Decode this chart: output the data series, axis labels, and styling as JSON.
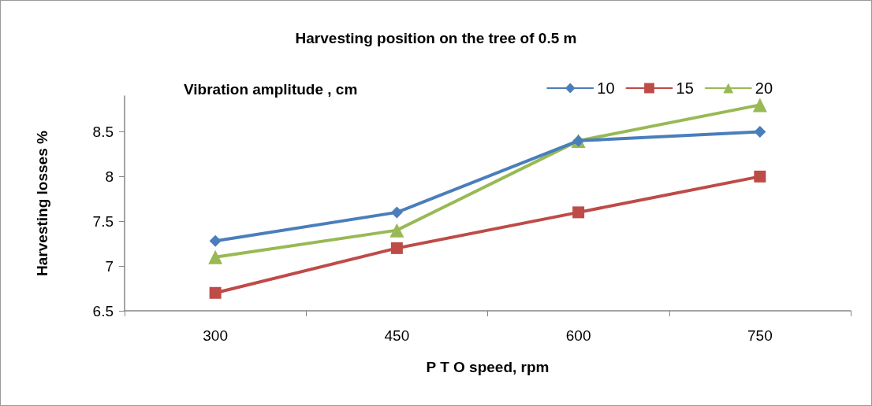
{
  "chart_data": {
    "type": "line",
    "title": "Harvesting position on the tree of 0.5 m",
    "xlabel": "P T O speed, rpm",
    "ylabel": "Harvesting losses %",
    "legend_title": "Vibration amplitude , cm",
    "categories": [
      "300",
      "450",
      "600",
      "750"
    ],
    "series": [
      {
        "name": "10",
        "color": "#4a7ebb",
        "marker": "diamond",
        "values": [
          7.28,
          7.6,
          8.4,
          8.5
        ]
      },
      {
        "name": "15",
        "color": "#be4b48",
        "marker": "square",
        "values": [
          6.7,
          7.2,
          7.6,
          8.0
        ]
      },
      {
        "name": "20",
        "color": "#98b954",
        "marker": "triangle",
        "values": [
          7.1,
          7.4,
          8.4,
          8.8
        ]
      }
    ],
    "ylim": [
      6.5,
      8.9
    ],
    "yticks": [
      6.5,
      7,
      7.5,
      8,
      8.5
    ],
    "grid": false,
    "legend": "top right",
    "line_style": "solid"
  }
}
